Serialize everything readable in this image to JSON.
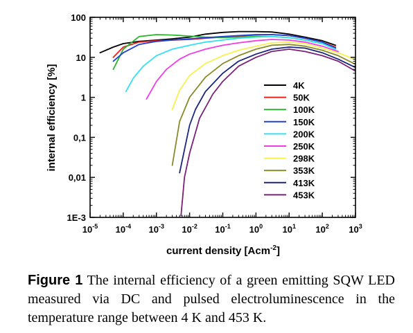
{
  "chart_data": {
    "type": "line",
    "xlabel_main": "current density [Acm",
    "xlabel_sup": "-2",
    "xlabel_end": "]",
    "ylabel": "internal efficiency [%]",
    "x_scale": "log",
    "y_scale": "log",
    "xlim": [
      1e-05,
      1000
    ],
    "ylim": [
      0.001,
      100
    ],
    "grid": false,
    "legend_position": "right",
    "x_ticks": [
      {
        "value": 1e-05,
        "base": "10",
        "exp": "-5"
      },
      {
        "value": 0.0001,
        "base": "10",
        "exp": "-4"
      },
      {
        "value": 0.001,
        "base": "10",
        "exp": "-3"
      },
      {
        "value": 0.01,
        "base": "10",
        "exp": "-2"
      },
      {
        "value": 0.1,
        "base": "10",
        "exp": "-1"
      },
      {
        "value": 1,
        "base": "10",
        "exp": "0"
      },
      {
        "value": 10,
        "base": "10",
        "exp": "1"
      },
      {
        "value": 100,
        "base": "10",
        "exp": "2"
      },
      {
        "value": 1000,
        "base": "10",
        "exp": "3"
      }
    ],
    "y_ticks": [
      {
        "value": 0.001,
        "label": "1E-3"
      },
      {
        "value": 0.01,
        "label": "0,01"
      },
      {
        "value": 0.1,
        "label": "0,1"
      },
      {
        "value": 1,
        "label": "1"
      },
      {
        "value": 10,
        "label": "10"
      },
      {
        "value": 100,
        "label": "100"
      }
    ],
    "series": [
      {
        "name": "4K",
        "color": "#000000",
        "points": [
          [
            2e-05,
            13
          ],
          [
            5e-05,
            18
          ],
          [
            0.0001,
            22
          ],
          [
            0.0003,
            25
          ],
          [
            0.001,
            27
          ],
          [
            0.003,
            29
          ],
          [
            0.01,
            32
          ],
          [
            0.03,
            38
          ],
          [
            0.1,
            42
          ],
          [
            0.3,
            44
          ],
          [
            1,
            44
          ],
          [
            3,
            43
          ],
          [
            10,
            38
          ],
          [
            30,
            32
          ],
          [
            100,
            26
          ],
          [
            250,
            20
          ]
        ]
      },
      {
        "name": "50K",
        "color": "#e8231a",
        "points": [
          [
            5e-05,
            10
          ],
          [
            0.0001,
            18
          ],
          [
            0.0003,
            24
          ],
          [
            0.001,
            26
          ],
          [
            0.003,
            27
          ],
          [
            0.01,
            28
          ],
          [
            0.03,
            30
          ],
          [
            0.1,
            32
          ],
          [
            0.3,
            34
          ],
          [
            1,
            36
          ],
          [
            3,
            37
          ],
          [
            10,
            35
          ],
          [
            30,
            30
          ],
          [
            100,
            24
          ],
          [
            250,
            18
          ]
        ]
      },
      {
        "name": "100K",
        "color": "#2db52d",
        "points": [
          [
            5e-05,
            5
          ],
          [
            0.0001,
            16
          ],
          [
            0.0003,
            33
          ],
          [
            0.001,
            37
          ],
          [
            0.003,
            36
          ],
          [
            0.01,
            34
          ],
          [
            0.03,
            32
          ],
          [
            0.1,
            31
          ],
          [
            0.3,
            32
          ],
          [
            1,
            33
          ],
          [
            3,
            33
          ],
          [
            10,
            31
          ],
          [
            30,
            27
          ],
          [
            100,
            22
          ],
          [
            250,
            17
          ]
        ]
      },
      {
        "name": "150K",
        "color": "#1f3fd6",
        "points": [
          [
            5e-05,
            8
          ],
          [
            0.0001,
            13
          ],
          [
            0.0003,
            21
          ],
          [
            0.001,
            25
          ],
          [
            0.003,
            27
          ],
          [
            0.01,
            29
          ],
          [
            0.03,
            31
          ],
          [
            0.1,
            33
          ],
          [
            0.3,
            35
          ],
          [
            1,
            37
          ],
          [
            3,
            37
          ],
          [
            10,
            35
          ],
          [
            30,
            30
          ],
          [
            100,
            24
          ],
          [
            250,
            17
          ]
        ]
      },
      {
        "name": "200K",
        "color": "#33e0f2",
        "points": [
          [
            0.00012,
            1.4
          ],
          [
            0.0002,
            3
          ],
          [
            0.0004,
            6
          ],
          [
            0.001,
            11
          ],
          [
            0.003,
            16
          ],
          [
            0.01,
            20
          ],
          [
            0.03,
            24
          ],
          [
            0.1,
            27
          ],
          [
            0.3,
            30
          ],
          [
            1,
            32
          ],
          [
            3,
            33
          ],
          [
            10,
            31
          ],
          [
            30,
            27
          ],
          [
            100,
            22
          ],
          [
            250,
            16
          ]
        ]
      },
      {
        "name": "250K",
        "color": "#f03ce8",
        "points": [
          [
            0.0005,
            0.9
          ],
          [
            0.001,
            2.5
          ],
          [
            0.002,
            5
          ],
          [
            0.005,
            9
          ],
          [
            0.01,
            12
          ],
          [
            0.03,
            16
          ],
          [
            0.1,
            20
          ],
          [
            0.3,
            23
          ],
          [
            1,
            26
          ],
          [
            3,
            28
          ],
          [
            10,
            27
          ],
          [
            30,
            24
          ],
          [
            100,
            19
          ],
          [
            300,
            14
          ]
        ]
      },
      {
        "name": "298K",
        "color": "#f7f14d",
        "points": [
          [
            0.003,
            0.5
          ],
          [
            0.005,
            1.5
          ],
          [
            0.01,
            3.5
          ],
          [
            0.03,
            7
          ],
          [
            0.1,
            11
          ],
          [
            0.3,
            15
          ],
          [
            1,
            19
          ],
          [
            3,
            23
          ],
          [
            10,
            24
          ],
          [
            30,
            22
          ],
          [
            100,
            17
          ],
          [
            300,
            13
          ],
          [
            1300,
            8
          ]
        ]
      },
      {
        "name": "353K",
        "color": "#8a8a2a",
        "points": [
          [
            0.003,
            0.02
          ],
          [
            0.005,
            0.25
          ],
          [
            0.01,
            1
          ],
          [
            0.03,
            3.2
          ],
          [
            0.1,
            7
          ],
          [
            0.3,
            11
          ],
          [
            1,
            16
          ],
          [
            3,
            20
          ],
          [
            10,
            21
          ],
          [
            30,
            19
          ],
          [
            100,
            15
          ],
          [
            300,
            11
          ],
          [
            1300,
            6
          ]
        ]
      },
      {
        "name": "413K",
        "color": "#1a237e",
        "points": [
          [
            0.005,
            0.013
          ],
          [
            0.01,
            0.2
          ],
          [
            0.015,
            0.5
          ],
          [
            0.03,
            1.4
          ],
          [
            0.1,
            4
          ],
          [
            0.3,
            8
          ],
          [
            1,
            12
          ],
          [
            3,
            16
          ],
          [
            10,
            18
          ],
          [
            30,
            17
          ],
          [
            100,
            13
          ],
          [
            300,
            9
          ],
          [
            1300,
            5
          ]
        ]
      },
      {
        "name": "453K",
        "color": "#7a1f7a",
        "points": [
          [
            0.0055,
            0.0011
          ],
          [
            0.007,
            0.01
          ],
          [
            0.01,
            0.04
          ],
          [
            0.02,
            0.3
          ],
          [
            0.05,
            1.2
          ],
          [
            0.1,
            2.5
          ],
          [
            0.3,
            6
          ],
          [
            1,
            10
          ],
          [
            3,
            14
          ],
          [
            10,
            16
          ],
          [
            30,
            14
          ],
          [
            100,
            11
          ],
          [
            300,
            8
          ],
          [
            1300,
            4
          ]
        ]
      }
    ]
  },
  "caption": {
    "label": "Figure 1",
    "text": " The internal efficiency of a green emitting SQW LED measured via DC and pulsed electroluminescence in the temperature range between 4 K and 453 K."
  }
}
